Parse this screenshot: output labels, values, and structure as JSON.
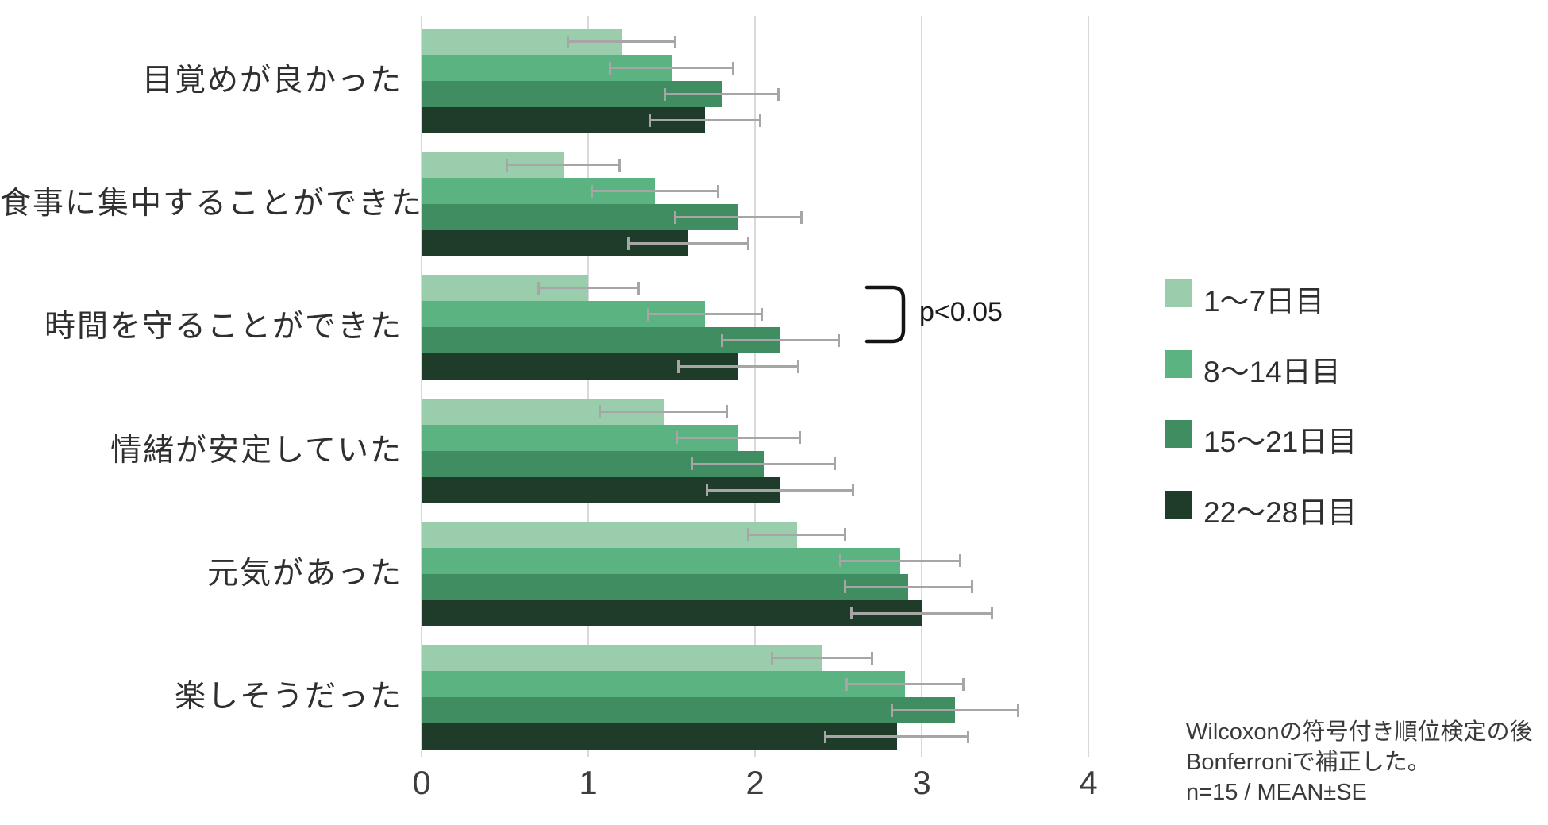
{
  "chart_data": {
    "type": "bar",
    "orientation": "horizontal",
    "title": "",
    "categories": [
      "目覚めが良かった",
      "食事に集中することができた",
      "時間を守ることができた",
      "情緒が安定していた",
      "元気があった",
      "楽しそうだった"
    ],
    "series": [
      {
        "name": "1〜7日目",
        "color": "#9acdab",
        "values": [
          1.2,
          0.85,
          1.0,
          1.45,
          2.25,
          2.4
        ],
        "errors": [
          0.32,
          0.34,
          0.3,
          0.38,
          0.29,
          0.3
        ]
      },
      {
        "name": "8〜14日目",
        "color": "#5cb382",
        "values": [
          1.5,
          1.4,
          1.7,
          1.9,
          2.87,
          2.9
        ],
        "errors": [
          0.37,
          0.38,
          0.34,
          0.37,
          0.36,
          0.35
        ]
      },
      {
        "name": "15〜21日目",
        "color": "#3f8d61",
        "values": [
          1.8,
          1.9,
          2.15,
          2.05,
          2.92,
          3.2
        ],
        "errors": [
          0.34,
          0.38,
          0.35,
          0.43,
          0.38,
          0.38
        ]
      },
      {
        "name": "22〜28日目",
        "color": "#1f3c2a",
        "values": [
          1.7,
          1.6,
          1.9,
          2.15,
          3.0,
          2.85
        ],
        "errors": [
          0.33,
          0.36,
          0.36,
          0.44,
          0.42,
          0.43
        ]
      }
    ],
    "xlim": [
      0,
      4
    ],
    "xticks": [
      "0",
      "1",
      "2",
      "3",
      "4"
    ],
    "grid": true,
    "error_bars": "SE",
    "legend_position": "right",
    "annotation": {
      "text": "p<0.05",
      "category": "時間を守ることができた",
      "between_series": [
        "1〜7日目",
        "15〜21日目"
      ]
    },
    "footnote_lines": [
      "Wilcoxonの符号付き順位検定の後",
      "Bonferroniで補正した。",
      "n=15 / MEAN±SE"
    ]
  },
  "colors": {
    "gridline": "#d9d9d9",
    "error_bar": "#a6a6a6",
    "bracket": "#141414",
    "background": "#ffffff"
  }
}
